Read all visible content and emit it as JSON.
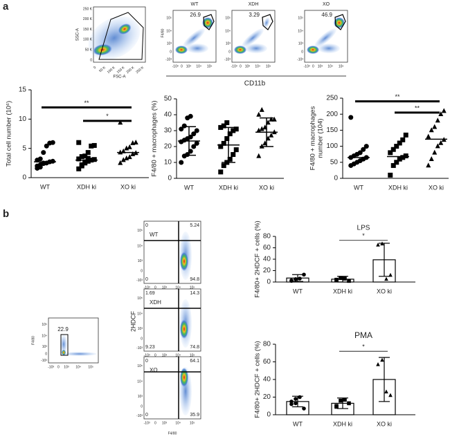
{
  "figure": {
    "panels": [
      "a",
      "b"
    ]
  },
  "flow": {
    "scatter_gate": {
      "ylabel": "SSC-A",
      "xlabel": "FSC-A",
      "yticks": [
        "250 K",
        "200 K",
        "150 K",
        "100 K",
        "50 K",
        "0"
      ],
      "xticks": [
        "0",
        "50 K",
        "100 K",
        "150 K",
        "200 K",
        "250 K"
      ]
    },
    "cd11b": {
      "ylabel": "F4/80",
      "xlabel": "CD11b",
      "ticks": [
        "-10³",
        "0",
        "10³",
        "10⁴",
        "10⁵"
      ],
      "plots": [
        {
          "title": "WT",
          "gate": "26.9"
        },
        {
          "title": "XDH",
          "gate": "3.29"
        },
        {
          "title": "XO",
          "gate": "46.9"
        }
      ]
    },
    "hdcf_gate": {
      "gate": "22.9",
      "ylabel": "F4/80"
    },
    "hdcf": {
      "ylabel": "2HDCF",
      "xlabel": "F4/80",
      "plots": [
        {
          "title": "WT",
          "quadrants": [
            "0",
            "5.24",
            "0",
            "94.8"
          ]
        },
        {
          "title": "XDH",
          "quadrants": [
            "1.69",
            "14.3",
            "9.23",
            "74.8"
          ]
        },
        {
          "title": "XO",
          "quadrants": [
            "0",
            "64.1",
            "0",
            "35.9"
          ]
        }
      ]
    }
  },
  "chart_data": [
    {
      "type": "dotplot",
      "ylabel": [
        "Total cell number (10⁶)"
      ],
      "categories": [
        "WT",
        "XDH ki",
        "XO ki"
      ],
      "markers": [
        "circle",
        "square",
        "triangle"
      ],
      "points": [
        [
          2.0,
          2.2,
          2.5,
          2.5,
          2.7,
          2.8,
          3.0,
          3.2,
          4.3,
          5.4,
          5.9,
          6.0,
          1.6,
          1.8,
          2.4
        ],
        [
          1.5,
          2.2,
          2.5,
          2.8,
          3.0,
          3.1,
          3.2,
          3.6,
          3.7,
          4.3,
          5.4,
          5.5,
          6.0,
          2.0,
          2.7,
          3.3
        ],
        [
          2.5,
          3.0,
          3.3,
          3.5,
          4.0,
          4.2,
          4.3,
          4.5,
          5.0,
          5.2,
          5.9,
          6.0,
          9.4
        ]
      ],
      "centers": [
        2.7,
        3.0,
        4.3
      ],
      "ylim": [
        0,
        15
      ],
      "yticks": [
        0,
        5,
        10,
        15
      ],
      "brackets": [
        {
          "from": 0,
          "to": 2,
          "text": "**",
          "y": 12
        },
        {
          "from": 1,
          "to": 2,
          "text": "*",
          "y": 9.7
        }
      ]
    },
    {
      "type": "dotplot",
      "ylabel": [
        "F4/80 + macrophages (%)"
      ],
      "categories": [
        "WT",
        "XDH ki",
        "XO ki"
      ],
      "markers": [
        "circle",
        "square",
        "triangle"
      ],
      "points": [
        [
          10,
          14,
          15,
          17,
          20,
          22,
          23,
          24,
          25,
          26,
          28,
          30,
          31,
          33,
          38,
          39
        ],
        [
          4,
          8,
          10,
          12,
          15,
          18,
          20,
          22,
          25,
          28,
          30,
          31,
          32,
          33,
          35
        ],
        [
          14,
          20,
          22,
          25,
          27,
          29,
          30,
          31,
          32,
          35,
          37,
          37,
          40,
          43
        ]
      ],
      "centers": [
        23.5,
        21,
        29
      ],
      "errors": [
        9,
        11,
        9
      ],
      "ylim": [
        0,
        50
      ],
      "yticks": [
        0,
        10,
        20,
        30,
        40,
        50
      ]
    },
    {
      "type": "dotplot",
      "ylabel": [
        "F4/80 + macrophages",
        "number (104)"
      ],
      "categories": [
        "WT",
        "XDH ki",
        "XO ki"
      ],
      "markers": [
        "circle",
        "square",
        "triangle"
      ],
      "points": [
        [
          40,
          45,
          50,
          55,
          60,
          65,
          65,
          70,
          75,
          80,
          90,
          100,
          190
        ],
        [
          10,
          40,
          50,
          60,
          65,
          70,
          80,
          90,
          100,
          110,
          120,
          135
        ],
        [
          40,
          60,
          80,
          100,
          110,
          120,
          130,
          150,
          160,
          180,
          200,
          210
        ]
      ],
      "centers": [
        65,
        68,
        122
      ],
      "ylim": [
        0,
        250
      ],
      "yticks": [
        0,
        50,
        100,
        150,
        200,
        250
      ],
      "brackets": [
        {
          "from": 0,
          "to": 2,
          "text": "**",
          "y": 240
        },
        {
          "from": 1,
          "to": 2,
          "text": "**",
          "y": 205
        }
      ]
    },
    {
      "type": "bar",
      "title": "LPS",
      "ylabel": [
        "F4/80+ 2HDCF + cells (%)"
      ],
      "categories": [
        "WT",
        "XDH ki",
        "XO ki"
      ],
      "markers": [
        "circle",
        "square",
        "triangle"
      ],
      "points": [
        [
          3,
          5,
          6,
          13,
          2,
          5
        ],
        [
          3,
          7,
          6,
          2,
          4
        ],
        [
          65,
          67,
          5,
          12
        ]
      ],
      "centers": [
        7,
        5,
        39
      ],
      "errors": [
        6,
        5,
        29
      ],
      "ylim": [
        0,
        80
      ],
      "yticks": [
        0,
        20,
        40,
        60,
        80
      ],
      "brackets": [
        {
          "from": 1,
          "to": 2,
          "text": "*",
          "y": 73
        }
      ]
    },
    {
      "type": "bar",
      "title": "PMA",
      "ylabel": [
        "F4/80+ 2HDCF + cells (%)"
      ],
      "categories": [
        "WT",
        "XDH ki",
        "XO ki"
      ],
      "markers": [
        "circle",
        "square",
        "triangle"
      ],
      "points": [
        [
          12,
          18,
          20,
          7,
          15,
          13
        ],
        [
          9,
          16,
          17,
          13,
          10
        ],
        [
          57,
          62,
          26,
          22
        ]
      ],
      "centers": [
        15,
        13,
        40
      ],
      "errors": [
        6,
        6,
        25
      ],
      "ylim": [
        0,
        80
      ],
      "yticks": [
        0,
        20,
        40,
        60,
        80
      ],
      "brackets": [
        {
          "from": 1,
          "to": 2,
          "text": "*",
          "y": 72
        }
      ]
    }
  ]
}
